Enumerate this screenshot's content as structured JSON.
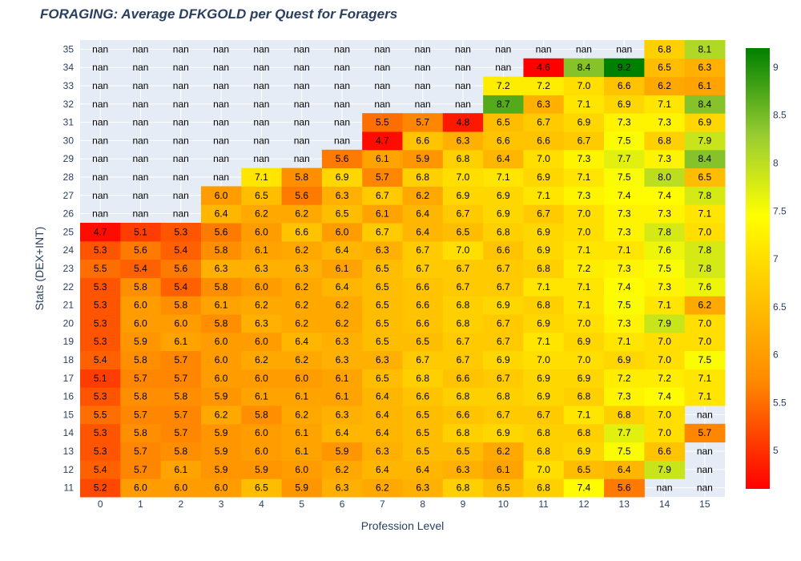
{
  "chart_data": {
    "type": "heatmap",
    "title": "FORAGING: Average DFKGOLD per Quest for Foragers",
    "xlabel": "Profession Level",
    "ylabel": "Stats (DEX+INT)",
    "x": [
      0,
      1,
      2,
      3,
      4,
      5,
      6,
      7,
      8,
      9,
      10,
      11,
      12,
      13,
      14,
      15
    ],
    "y": [
      11,
      12,
      13,
      14,
      15,
      16,
      17,
      18,
      19,
      20,
      21,
      22,
      23,
      24,
      25,
      26,
      27,
      28,
      29,
      30,
      31,
      32,
      33,
      34,
      35
    ],
    "z": [
      [
        5.2,
        6.0,
        6.0,
        6.0,
        6.5,
        5.9,
        6.3,
        6.2,
        6.3,
        6.8,
        6.5,
        6.8,
        7.4,
        5.6,
        null,
        null
      ],
      [
        5.4,
        5.7,
        6.1,
        5.9,
        5.9,
        6.0,
        6.2,
        6.4,
        6.4,
        6.3,
        6.1,
        7.0,
        6.5,
        6.4,
        7.9,
        null
      ],
      [
        5.3,
        5.7,
        5.8,
        5.9,
        6.0,
        6.1,
        5.9,
        6.3,
        6.5,
        6.5,
        6.2,
        6.8,
        6.9,
        7.5,
        6.6,
        null
      ],
      [
        5.3,
        5.8,
        5.7,
        5.9,
        6.0,
        6.1,
        6.4,
        6.4,
        6.5,
        6.8,
        6.9,
        6.8,
        6.8,
        7.7,
        7.0,
        5.7
      ],
      [
        5.5,
        5.7,
        5.7,
        6.2,
        5.8,
        6.2,
        6.3,
        6.4,
        6.5,
        6.6,
        6.7,
        6.7,
        7.1,
        6.8,
        7.0,
        null
      ],
      [
        5.3,
        5.8,
        5.8,
        5.9,
        6.1,
        6.1,
        6.1,
        6.4,
        6.6,
        6.8,
        6.8,
        6.9,
        6.8,
        7.3,
        7.4,
        7.1
      ],
      [
        5.1,
        5.7,
        5.7,
        6.0,
        6.0,
        6.0,
        6.1,
        6.5,
        6.8,
        6.6,
        6.7,
        6.9,
        6.9,
        7.2,
        7.2,
        7.1
      ],
      [
        5.4,
        5.8,
        5.7,
        6.0,
        6.2,
        6.2,
        6.3,
        6.3,
        6.7,
        6.7,
        6.9,
        7.0,
        7.0,
        6.9,
        7.0,
        7.5
      ],
      [
        5.3,
        5.9,
        6.1,
        6.0,
        6.0,
        6.4,
        6.3,
        6.5,
        6.5,
        6.7,
        6.7,
        7.1,
        6.9,
        7.1,
        7.0,
        7.0
      ],
      [
        5.3,
        6.0,
        6.0,
        5.8,
        6.3,
        6.2,
        6.2,
        6.5,
        6.6,
        6.8,
        6.7,
        6.9,
        7.0,
        7.3,
        7.9,
        7.0
      ],
      [
        5.3,
        6.0,
        5.8,
        6.1,
        6.2,
        6.2,
        6.2,
        6.5,
        6.6,
        6.8,
        6.9,
        6.8,
        7.1,
        7.5,
        7.1,
        6.2
      ],
      [
        5.3,
        5.8,
        5.4,
        5.8,
        6.0,
        6.2,
        6.4,
        6.5,
        6.6,
        6.7,
        6.7,
        7.1,
        7.1,
        7.4,
        7.3,
        7.6
      ],
      [
        5.5,
        5.4,
        5.6,
        6.3,
        6.3,
        6.3,
        6.1,
        6.5,
        6.7,
        6.7,
        6.7,
        6.8,
        7.2,
        7.3,
        7.5,
        7.8
      ],
      [
        5.3,
        5.6,
        5.4,
        5.8,
        6.1,
        6.2,
        6.4,
        6.3,
        6.7,
        7.0,
        6.6,
        6.9,
        7.1,
        7.1,
        7.6,
        7.8
      ],
      [
        4.7,
        5.1,
        5.3,
        5.6,
        6.0,
        6.6,
        6.0,
        6.7,
        6.4,
        6.5,
        6.8,
        6.9,
        7.0,
        7.3,
        7.8,
        7.0
      ],
      [
        null,
        null,
        null,
        6.4,
        6.2,
        6.2,
        6.5,
        6.1,
        6.4,
        6.7,
        6.9,
        6.7,
        7.0,
        7.3,
        7.3,
        7.1
      ],
      [
        null,
        null,
        null,
        6.0,
        6.5,
        5.6,
        6.3,
        6.7,
        6.2,
        6.9,
        6.9,
        7.1,
        7.3,
        7.4,
        7.4,
        7.8
      ],
      [
        null,
        null,
        null,
        null,
        7.1,
        5.8,
        6.9,
        5.7,
        6.8,
        7.0,
        7.1,
        6.9,
        7.1,
        7.5,
        8.0,
        6.5
      ],
      [
        null,
        null,
        null,
        null,
        null,
        null,
        5.6,
        6.1,
        5.9,
        6.8,
        6.4,
        7.0,
        7.3,
        7.7,
        7.3,
        8.4
      ],
      [
        null,
        null,
        null,
        null,
        null,
        null,
        null,
        4.7,
        6.6,
        6.3,
        6.6,
        6.6,
        6.7,
        7.5,
        6.8,
        7.9
      ],
      [
        null,
        null,
        null,
        null,
        null,
        null,
        null,
        5.5,
        5.7,
        4.8,
        6.5,
        6.7,
        6.9,
        7.3,
        7.3,
        6.9
      ],
      [
        null,
        null,
        null,
        null,
        null,
        null,
        null,
        null,
        null,
        null,
        8.7,
        6.3,
        7.1,
        6.9,
        7.1,
        8.4
      ],
      [
        null,
        null,
        null,
        null,
        null,
        null,
        null,
        null,
        null,
        null,
        7.2,
        7.2,
        7.0,
        6.6,
        6.2,
        6.1
      ],
      [
        null,
        null,
        null,
        null,
        null,
        null,
        null,
        null,
        null,
        null,
        null,
        4.6,
        8.4,
        9.2,
        6.5,
        6.3
      ],
      [
        null,
        null,
        null,
        null,
        null,
        null,
        null,
        null,
        null,
        null,
        null,
        null,
        null,
        null,
        6.8,
        8.1
      ]
    ],
    "missing_label": "nan",
    "zmin": 4.6,
    "zmax": 9.2,
    "colorscale": [
      [
        0.0,
        "#ff0000"
      ],
      [
        0.25,
        "#ff8c00"
      ],
      [
        0.5,
        "#ffd700"
      ],
      [
        0.62,
        "#ffff00"
      ],
      [
        0.8,
        "#9acd32"
      ],
      [
        1.0,
        "#008000"
      ]
    ],
    "colorbar_ticks": [
      5,
      5.5,
      6,
      6.5,
      7,
      7.5,
      8,
      8.5,
      9
    ],
    "grid": true,
    "background_color": "#e5ecf6"
  }
}
